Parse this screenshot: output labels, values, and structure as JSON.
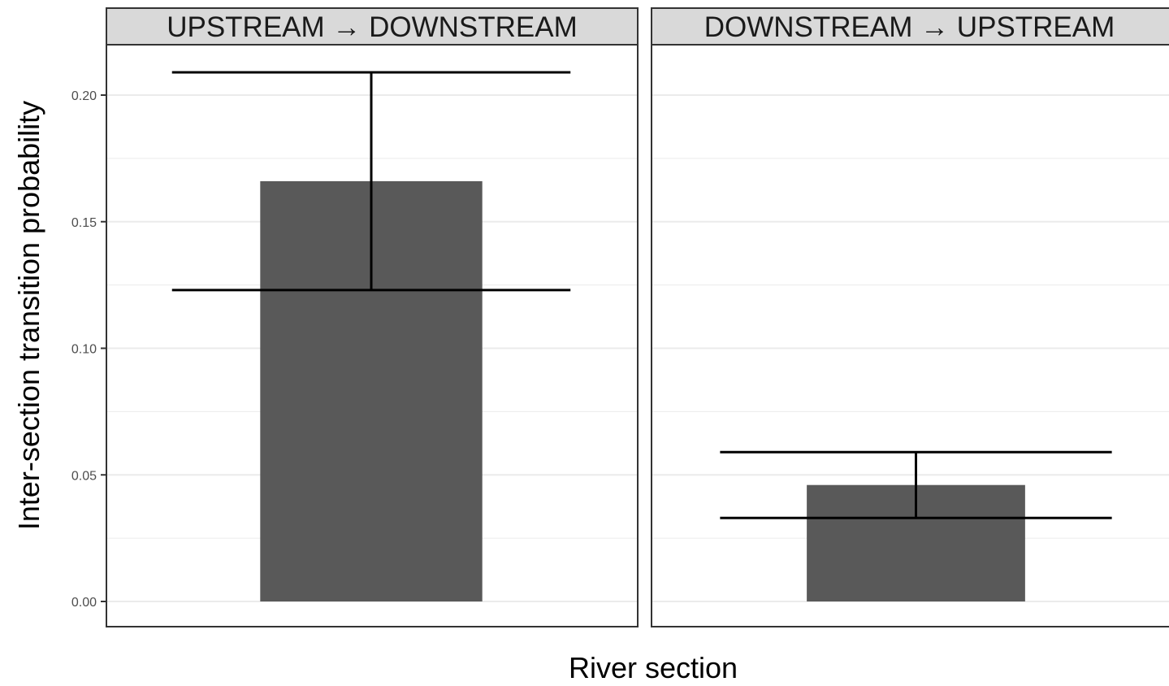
{
  "chart_data": {
    "type": "bar",
    "xlabel": "River section",
    "ylabel": "Inter-section transition probability",
    "ylim": [
      0,
      0.22
    ],
    "y_ticks": [
      "0.00",
      "0.05",
      "0.10",
      "0.15",
      "0.20"
    ],
    "y_tick_values": [
      0,
      0.05,
      0.1,
      0.15,
      0.2
    ],
    "grid": true,
    "legend": "none",
    "colors": {
      "bar": "#595959",
      "error_bar": "#000000",
      "grid": "#ebebeb",
      "strip_background": "#d9d9d9",
      "panel_border": "#333333"
    },
    "facets": [
      {
        "label": "UPSTREAM → DOWNSTREAM",
        "value": 0.166,
        "lower": 0.123,
        "upper": 0.209
      },
      {
        "label": "DOWNSTREAM → UPSTREAM",
        "value": 0.046,
        "lower": 0.033,
        "upper": 0.059
      }
    ]
  }
}
